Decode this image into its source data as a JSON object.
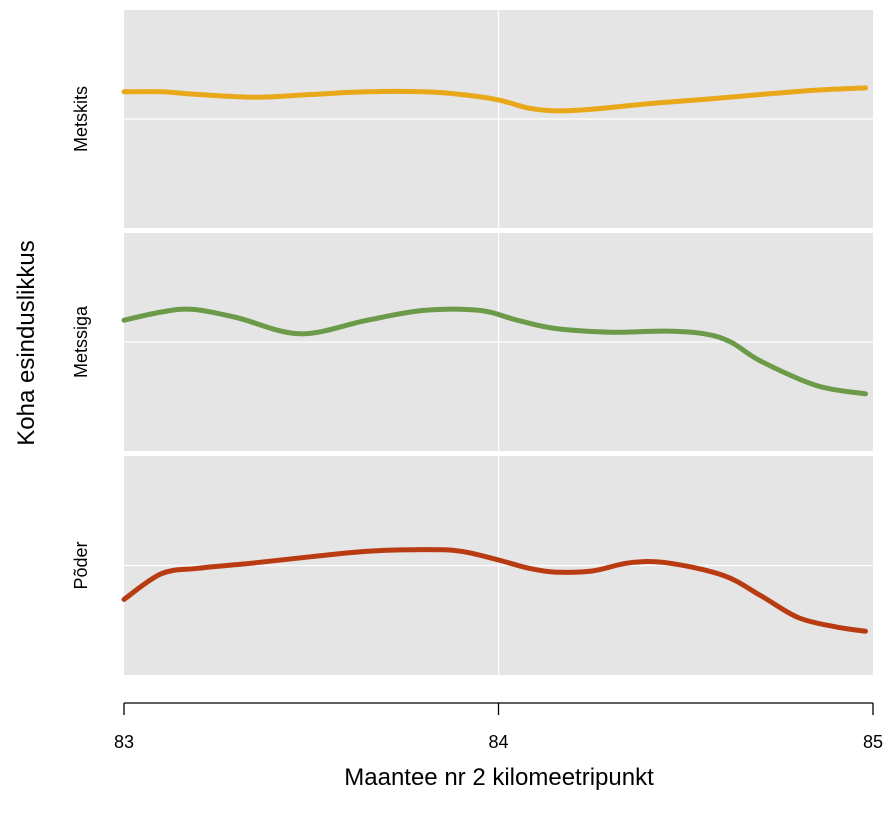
{
  "chart_data": {
    "type": "line",
    "title": "",
    "xlabel": "Maantee nr 2 kilomeetripunkt",
    "ylabel": "Koha esinduslikkus",
    "xlim": [
      83,
      85
    ],
    "x_ticks": [
      "83",
      "84",
      "85"
    ],
    "grid": true,
    "layout": "faceted-rows",
    "series": [
      {
        "name": "Metskits",
        "color": "#e8a81a",
        "x": [
          83.0,
          83.1,
          83.2,
          83.35,
          83.5,
          83.65,
          83.8,
          83.9,
          84.0,
          84.08,
          84.15,
          84.25,
          84.4,
          84.55,
          84.7,
          84.85,
          84.98
        ],
        "y": [
          0.5,
          0.5,
          0.45,
          0.4,
          0.45,
          0.5,
          0.5,
          0.45,
          0.35,
          0.2,
          0.15,
          0.18,
          0.28,
          0.36,
          0.45,
          0.53,
          0.57
        ]
      },
      {
        "name": "Metssiga",
        "color": "#6b9a48",
        "x": [
          83.0,
          83.1,
          83.18,
          83.3,
          83.47,
          83.65,
          83.8,
          83.95,
          84.05,
          84.15,
          84.3,
          84.45,
          84.55,
          84.62,
          84.7,
          84.85,
          84.98
        ],
        "y": [
          0.4,
          0.55,
          0.6,
          0.45,
          0.15,
          0.4,
          0.58,
          0.58,
          0.4,
          0.25,
          0.18,
          0.2,
          0.15,
          0.0,
          -0.35,
          -0.8,
          -0.95
        ]
      },
      {
        "name": "Põder",
        "color": "#b83b12",
        "x": [
          83.0,
          83.1,
          83.2,
          83.35,
          83.5,
          83.65,
          83.8,
          83.9,
          84.0,
          84.08,
          84.15,
          84.25,
          84.35,
          84.45,
          84.6,
          84.7,
          84.8,
          84.9,
          84.98
        ],
        "y": [
          -0.62,
          -0.15,
          -0.05,
          0.05,
          0.16,
          0.26,
          0.29,
          0.26,
          0.1,
          -0.05,
          -0.12,
          -0.1,
          0.05,
          0.05,
          -0.18,
          -0.55,
          -0.95,
          -1.12,
          -1.2
        ]
      }
    ]
  }
}
